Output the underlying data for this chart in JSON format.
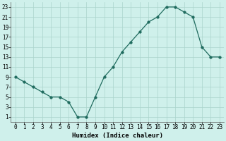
{
  "xlabel": "Humidex (Indice chaleur)",
  "x": [
    0,
    1,
    2,
    3,
    4,
    5,
    6,
    7,
    8,
    9,
    10,
    11,
    12,
    13,
    14,
    15,
    16,
    17,
    18,
    19,
    20,
    21,
    22,
    23
  ],
  "y": [
    9,
    8,
    7,
    6,
    5,
    5,
    4,
    1,
    1,
    5,
    9,
    11,
    14,
    16,
    18,
    20,
    21,
    23,
    23,
    22,
    21,
    15,
    13,
    13
  ],
  "line_color": "#1f6b5e",
  "marker": "o",
  "marker_size": 2.5,
  "bg_color": "#cff0eb",
  "grid_color": "#aad4cc",
  "xlim": [
    -0.5,
    23.5
  ],
  "ylim": [
    0,
    24
  ],
  "yticks": [
    1,
    3,
    5,
    7,
    9,
    11,
    13,
    15,
    17,
    19,
    21,
    23
  ],
  "xticks": [
    0,
    1,
    2,
    3,
    4,
    5,
    6,
    7,
    8,
    9,
    10,
    11,
    12,
    13,
    14,
    15,
    16,
    17,
    18,
    19,
    20,
    21,
    22,
    23
  ],
  "label_fontsize": 6.5,
  "tick_fontsize": 5.5
}
